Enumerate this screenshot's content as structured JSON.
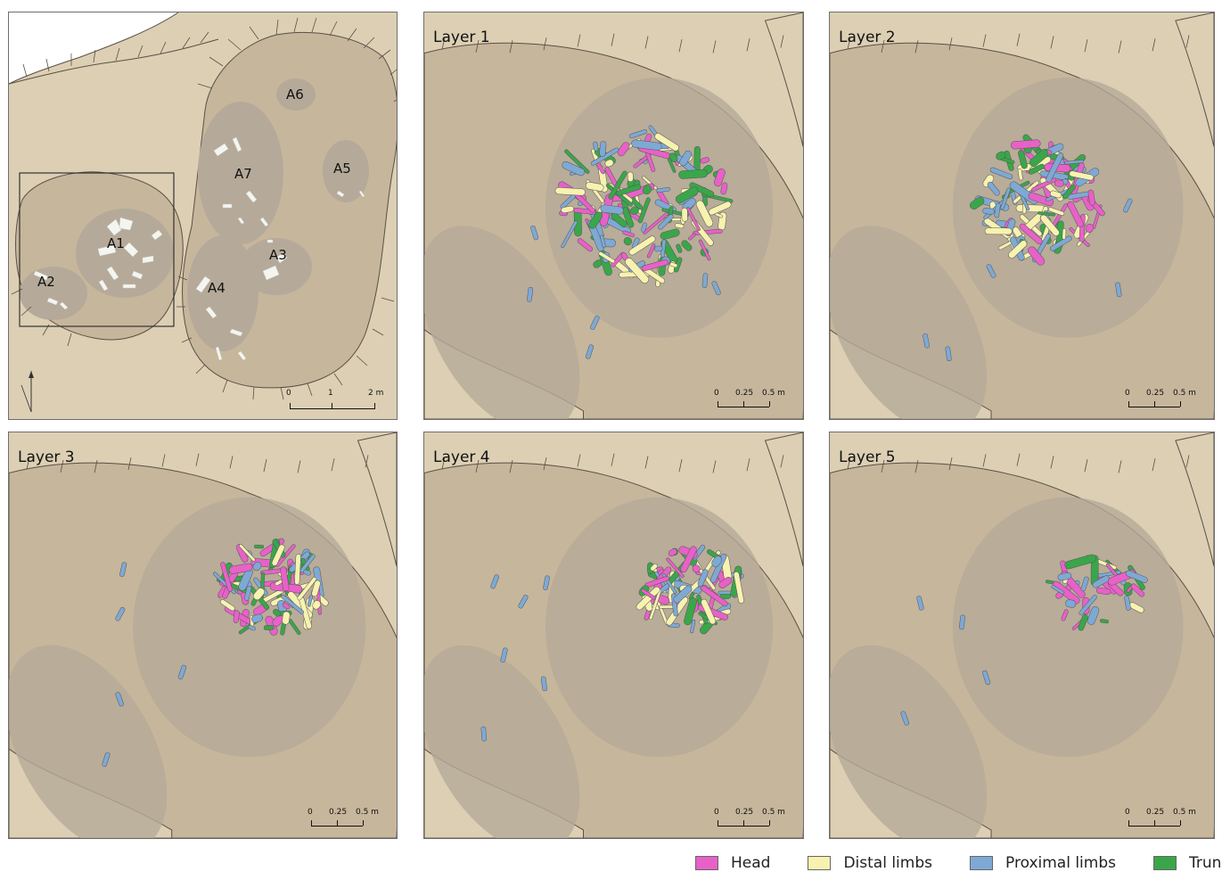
{
  "overview": {
    "areas": [
      "A1",
      "A2",
      "A3",
      "A4",
      "A5",
      "A6",
      "A7"
    ],
    "scale": [
      "0",
      "1",
      "2 m"
    ]
  },
  "layers": [
    {
      "title": "Layer 1",
      "scale": [
        "0",
        "0.25",
        "0.5 m"
      ]
    },
    {
      "title": "Layer 2",
      "scale": [
        "0",
        "0.25",
        "0.5 m"
      ]
    },
    {
      "title": "Layer 3",
      "scale": [
        "0",
        "0.25",
        "0.5 m"
      ]
    },
    {
      "title": "Layer 4",
      "scale": [
        "0",
        "0.25",
        "0.5 m"
      ]
    },
    {
      "title": "Layer 5",
      "scale": [
        "0",
        "0.25",
        "0.5 m"
      ]
    }
  ],
  "legend": [
    {
      "label": "Head",
      "color": "#e861c8"
    },
    {
      "label": "Distal limbs",
      "color": "#f7f2b0"
    },
    {
      "label": "Proximal limbs",
      "color": "#7ea9d4"
    },
    {
      "label": "Trunk",
      "color": "#3aa64a"
    }
  ],
  "colors": {
    "ground": "#dccfb4",
    "pit": "#c6b69c",
    "pit_edge": "#5a5045",
    "area_patch": "#b5aa99",
    "bone_white": "#f5f5f0"
  }
}
